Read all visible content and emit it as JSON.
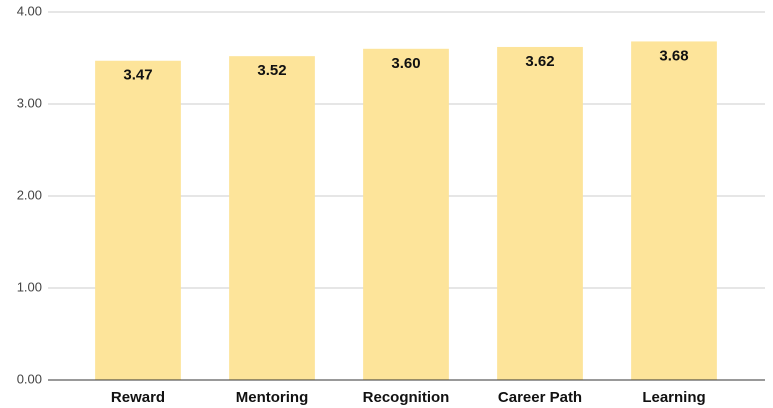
{
  "chart_data": {
    "type": "bar",
    "categories": [
      "Reward",
      "Mentoring",
      "Recognition",
      "Career Path",
      "Learning"
    ],
    "values": [
      3.47,
      3.52,
      3.6,
      3.62,
      3.68
    ],
    "value_labels": [
      "3.47",
      "3.52",
      "3.60",
      "3.62",
      "3.68"
    ],
    "color": "#fde49a",
    "ylim": [
      0,
      4
    ],
    "yticks": [
      {
        "value": 0,
        "label": "0.00"
      },
      {
        "value": 1,
        "label": "1.00"
      },
      {
        "value": 2,
        "label": "2.00"
      },
      {
        "value": 3,
        "label": "3.00"
      },
      {
        "value": 4,
        "label": "4.00"
      }
    ],
    "grid": true
  }
}
